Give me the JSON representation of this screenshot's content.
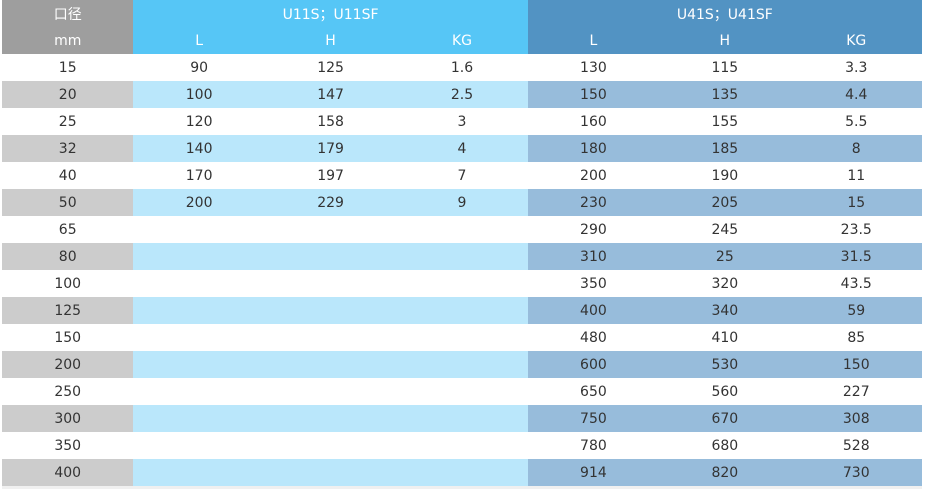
{
  "header": {
    "dn_label": "口径",
    "dn_unit": "mm",
    "group1": "U11S；U11SF",
    "group2": "U41S；U41SF",
    "cols": [
      "L",
      "H",
      "KG"
    ]
  },
  "rows": [
    {
      "dn": "15",
      "u11": [
        "90",
        "125",
        "1.6"
      ],
      "u41": [
        "130",
        "115",
        "3.3"
      ]
    },
    {
      "dn": "20",
      "u11": [
        "100",
        "147",
        "2.5"
      ],
      "u41": [
        "150",
        "135",
        "4.4"
      ]
    },
    {
      "dn": "25",
      "u11": [
        "120",
        "158",
        "3"
      ],
      "u41": [
        "160",
        "155",
        "5.5"
      ]
    },
    {
      "dn": "32",
      "u11": [
        "140",
        "179",
        "4"
      ],
      "u41": [
        "180",
        "185",
        "8"
      ]
    },
    {
      "dn": "40",
      "u11": [
        "170",
        "197",
        "7"
      ],
      "u41": [
        "200",
        "190",
        "11"
      ]
    },
    {
      "dn": "50",
      "u11": [
        "200",
        "229",
        "9"
      ],
      "u41": [
        "230",
        "205",
        "15"
      ]
    },
    {
      "dn": "65",
      "u11": [
        "",
        "",
        ""
      ],
      "u41": [
        "290",
        "245",
        "23.5"
      ]
    },
    {
      "dn": "80",
      "u11": [
        "",
        "",
        ""
      ],
      "u41": [
        "310",
        "25",
        "31.5"
      ]
    },
    {
      "dn": "100",
      "u11": [
        "",
        "",
        ""
      ],
      "u41": [
        "350",
        "320",
        "43.5"
      ]
    },
    {
      "dn": "125",
      "u11": [
        "",
        "",
        ""
      ],
      "u41": [
        "400",
        "340",
        "59"
      ]
    },
    {
      "dn": "150",
      "u11": [
        "",
        "",
        ""
      ],
      "u41": [
        "480",
        "410",
        "85"
      ]
    },
    {
      "dn": "200",
      "u11": [
        "",
        "",
        ""
      ],
      "u41": [
        "600",
        "530",
        "150"
      ]
    },
    {
      "dn": "250",
      "u11": [
        "",
        "",
        ""
      ],
      "u41": [
        "650",
        "560",
        "227"
      ]
    },
    {
      "dn": "300",
      "u11": [
        "",
        "",
        ""
      ],
      "u41": [
        "750",
        "670",
        "308"
      ]
    },
    {
      "dn": "350",
      "u11": [
        "",
        "",
        ""
      ],
      "u41": [
        "780",
        "680",
        "528"
      ]
    },
    {
      "dn": "400",
      "u11": [
        "",
        "",
        ""
      ],
      "u41": [
        "914",
        "820",
        "730"
      ]
    }
  ],
  "colors": {
    "dn_header": "#9e9e9e",
    "u11_header": "#56c6f6",
    "u41_header": "#5293c3",
    "dn_stripe": "#cccccc",
    "u11_stripe": "#bae7fb",
    "u41_stripe": "#97bcdb"
  }
}
